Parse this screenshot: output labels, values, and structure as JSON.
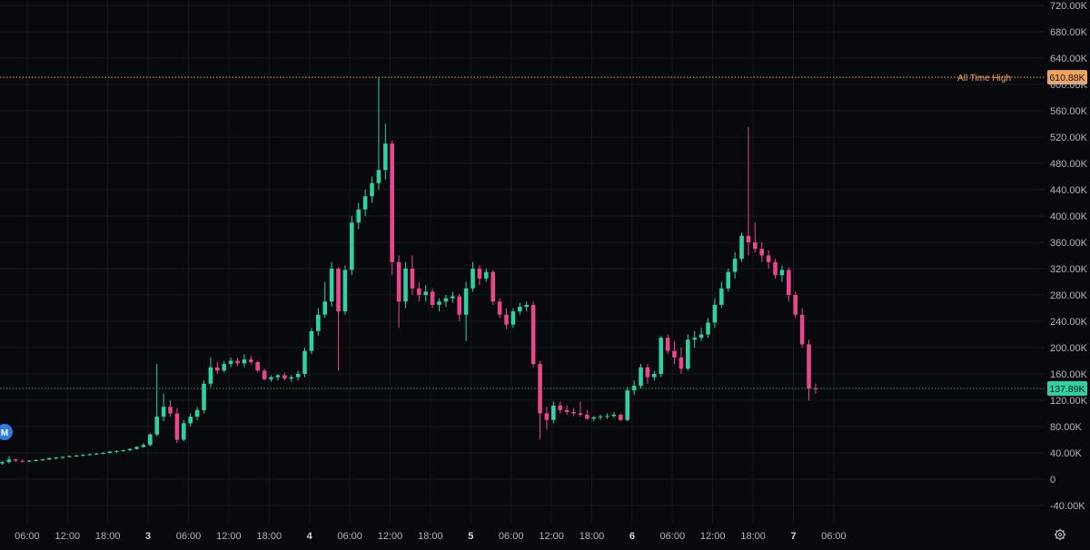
{
  "chart_data": {
    "type": "candlestick",
    "currency_suffix": "K",
    "ylim": [
      -40,
      720
    ],
    "y_ticks": [
      720,
      680,
      640,
      600,
      560,
      520,
      480,
      440,
      400,
      360,
      320,
      280,
      240,
      200,
      160,
      120,
      80,
      40,
      0,
      -40
    ],
    "y_tick_labels": [
      "720.00K",
      "680.00K",
      "640.00K",
      "600.00K",
      "560.00K",
      "520.00K",
      "480.00K",
      "440.00K",
      "400.00K",
      "360.00K",
      "320.00K",
      "280.00K",
      "240.00K",
      "200.00K",
      "160.00K",
      "120.00K",
      "80.00K",
      "40.00K",
      "0",
      "-40.00K"
    ],
    "x_hours": [
      6,
      12,
      18,
      24,
      30,
      36,
      42,
      48,
      54,
      60,
      66,
      72,
      78,
      84,
      90,
      96,
      102,
      108,
      114,
      120,
      126
    ],
    "x_tick_labels": [
      "06:00",
      "12:00",
      "18:00",
      "3",
      "06:00",
      "12:00",
      "18:00",
      "4",
      "06:00",
      "12:00",
      "18:00",
      "5",
      "06:00",
      "12:00",
      "18:00",
      "6",
      "06:00",
      "12:00",
      "18:00",
      "7",
      "06:00"
    ],
    "day_labels": [
      "3",
      "4",
      "5",
      "6",
      "7"
    ],
    "grid": true,
    "colors": {
      "up": "#2fd1a4",
      "down": "#e8478b",
      "background": "#07090d",
      "grid": "#151922",
      "ath": "#f0a35e",
      "current": "#22ab6a"
    },
    "ath_line": {
      "label": "All Time High",
      "value": 610.88,
      "price_label": "610.88K"
    },
    "current_line": {
      "value": 137.89,
      "price_label": "137.89K"
    },
    "marker_badge": {
      "text": "M",
      "color": "#2f7de1"
    },
    "ohlc": [
      [
        0,
        24,
        28,
        22,
        26
      ],
      [
        1,
        26,
        35,
        24,
        30
      ],
      [
        2,
        30,
        31,
        26,
        28
      ],
      [
        3,
        28,
        30,
        25,
        27
      ],
      [
        4,
        27,
        29,
        26,
        28
      ],
      [
        5,
        28,
        30,
        27,
        29
      ],
      [
        6,
        29,
        31,
        28,
        30
      ],
      [
        7,
        30,
        33,
        29,
        32
      ],
      [
        8,
        32,
        34,
        30,
        33
      ],
      [
        9,
        33,
        35,
        31,
        34
      ],
      [
        10,
        34,
        36,
        33,
        35
      ],
      [
        11,
        35,
        37,
        34,
        36
      ],
      [
        12,
        36,
        38,
        35,
        37
      ],
      [
        13,
        37,
        39,
        36,
        38
      ],
      [
        14,
        38,
        40,
        37,
        39
      ],
      [
        15,
        39,
        41,
        38,
        40
      ],
      [
        16,
        40,
        43,
        39,
        42
      ],
      [
        17,
        42,
        44,
        40,
        43
      ],
      [
        18,
        43,
        45,
        42,
        44
      ],
      [
        19,
        44,
        47,
        43,
        46
      ],
      [
        20,
        46,
        50,
        45,
        49
      ],
      [
        21,
        49,
        55,
        48,
        52
      ],
      [
        22,
        52,
        70,
        50,
        68
      ],
      [
        23,
        68,
        175,
        65,
        95
      ],
      [
        24,
        95,
        130,
        88,
        110
      ],
      [
        25,
        110,
        120,
        95,
        100
      ],
      [
        26,
        100,
        108,
        55,
        60
      ],
      [
        27,
        60,
        90,
        58,
        85
      ],
      [
        28,
        85,
        100,
        80,
        95
      ],
      [
        29,
        95,
        110,
        90,
        105
      ],
      [
        30,
        105,
        150,
        100,
        145
      ],
      [
        31,
        145,
        185,
        140,
        170
      ],
      [
        32,
        170,
        178,
        160,
        165
      ],
      [
        33,
        165,
        180,
        162,
        175
      ],
      [
        34,
        175,
        185,
        170,
        180
      ],
      [
        35,
        180,
        185,
        172,
        176
      ],
      [
        36,
        176,
        190,
        170,
        182
      ],
      [
        37,
        182,
        188,
        175,
        178
      ],
      [
        38,
        178,
        180,
        162,
        165
      ],
      [
        39,
        165,
        168,
        150,
        152
      ],
      [
        40,
        152,
        158,
        148,
        155
      ],
      [
        41,
        155,
        160,
        150,
        158
      ],
      [
        42,
        158,
        162,
        150,
        153
      ],
      [
        43,
        153,
        158,
        148,
        155
      ],
      [
        44,
        155,
        165,
        150,
        160
      ],
      [
        45,
        160,
        200,
        155,
        195
      ],
      [
        46,
        195,
        230,
        190,
        225
      ],
      [
        47,
        225,
        260,
        218,
        250
      ],
      [
        48,
        250,
        300,
        245,
        270
      ],
      [
        49,
        270,
        330,
        262,
        320
      ],
      [
        50,
        320,
        322,
        165,
        255
      ],
      [
        51,
        255,
        325,
        250,
        318
      ],
      [
        52,
        318,
        400,
        310,
        390
      ],
      [
        53,
        390,
        420,
        380,
        410
      ],
      [
        54,
        410,
        440,
        400,
        430
      ],
      [
        55,
        430,
        460,
        420,
        450
      ],
      [
        56,
        450,
        610,
        440,
        470
      ],
      [
        57,
        470,
        540,
        455,
        510
      ],
      [
        58,
        510,
        515,
        310,
        330
      ],
      [
        59,
        330,
        340,
        230,
        270
      ],
      [
        60,
        270,
        330,
        260,
        320
      ],
      [
        61,
        320,
        340,
        280,
        290
      ],
      [
        62,
        290,
        300,
        270,
        280
      ],
      [
        63,
        280,
        295,
        270,
        285
      ],
      [
        64,
        285,
        290,
        260,
        265
      ],
      [
        65,
        265,
        275,
        255,
        270
      ],
      [
        66,
        270,
        280,
        262,
        275
      ],
      [
        67,
        275,
        285,
        268,
        278
      ],
      [
        68,
        278,
        282,
        240,
        250
      ],
      [
        69,
        250,
        300,
        210,
        290
      ],
      [
        70,
        290,
        330,
        285,
        320
      ],
      [
        71,
        320,
        325,
        295,
        305
      ],
      [
        72,
        305,
        320,
        300,
        315
      ],
      [
        73,
        315,
        318,
        265,
        270
      ],
      [
        74,
        270,
        275,
        245,
        250
      ],
      [
        75,
        250,
        260,
        228,
        235
      ],
      [
        76,
        235,
        260,
        230,
        255
      ],
      [
        77,
        255,
        268,
        250,
        262
      ],
      [
        78,
        262,
        270,
        255,
        265
      ],
      [
        79,
        265,
        270,
        170,
        175
      ],
      [
        80,
        175,
        180,
        60,
        100
      ],
      [
        81,
        100,
        110,
        75,
        90
      ],
      [
        82,
        90,
        118,
        85,
        112
      ],
      [
        83,
        112,
        118,
        100,
        105
      ],
      [
        84,
        105,
        112,
        98,
        102
      ],
      [
        85,
        102,
        108,
        96,
        100
      ],
      [
        86,
        100,
        118,
        95,
        98
      ],
      [
        87,
        98,
        105,
        90,
        92
      ],
      [
        88,
        92,
        96,
        88,
        94
      ],
      [
        89,
        94,
        98,
        90,
        95
      ],
      [
        90,
        95,
        100,
        92,
        96
      ],
      [
        91,
        96,
        102,
        93,
        98
      ],
      [
        92,
        98,
        100,
        88,
        90
      ],
      [
        93,
        90,
        140,
        88,
        135
      ],
      [
        94,
        135,
        150,
        128,
        142
      ],
      [
        95,
        142,
        175,
        138,
        170
      ],
      [
        96,
        170,
        175,
        145,
        155
      ],
      [
        97,
        155,
        165,
        150,
        160
      ],
      [
        98,
        160,
        218,
        155,
        215
      ],
      [
        99,
        215,
        220,
        190,
        195
      ],
      [
        100,
        195,
        210,
        175,
        185
      ],
      [
        101,
        185,
        200,
        160,
        168
      ],
      [
        102,
        168,
        220,
        165,
        212
      ],
      [
        103,
        212,
        225,
        200,
        215
      ],
      [
        104,
        215,
        230,
        210,
        220
      ],
      [
        105,
        220,
        245,
        215,
        238
      ],
      [
        106,
        238,
        275,
        230,
        265
      ],
      [
        107,
        265,
        300,
        260,
        290
      ],
      [
        108,
        290,
        320,
        285,
        315
      ],
      [
        109,
        315,
        345,
        305,
        335
      ],
      [
        110,
        335,
        375,
        330,
        370
      ],
      [
        111,
        370,
        535,
        340,
        360
      ],
      [
        112,
        360,
        390,
        345,
        350
      ],
      [
        113,
        350,
        360,
        330,
        340
      ],
      [
        114,
        340,
        348,
        320,
        330
      ],
      [
        115,
        330,
        335,
        305,
        310
      ],
      [
        116,
        310,
        325,
        300,
        318
      ],
      [
        117,
        318,
        322,
        270,
        280
      ],
      [
        118,
        280,
        285,
        245,
        250
      ],
      [
        119,
        250,
        260,
        200,
        205
      ],
      [
        120,
        205,
        212,
        120,
        138
      ],
      [
        121,
        138,
        145,
        130,
        137.89
      ]
    ]
  }
}
